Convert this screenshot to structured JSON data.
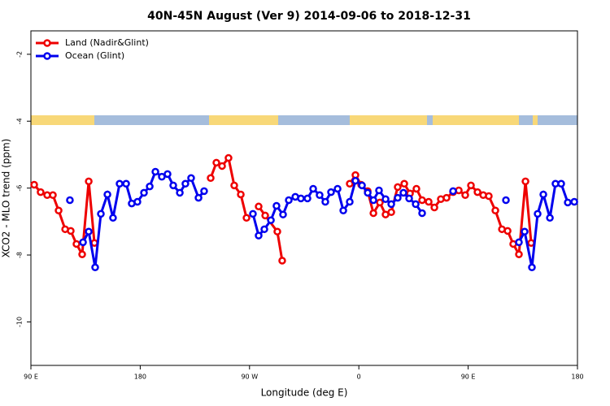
{
  "chart_data": {
    "type": "line",
    "title": "40N-45N August (Ver 9)   2014-09-06 to 2018-12-31",
    "xlabel": "Longitude (deg E)",
    "ylabel": "XCO2 - MLO trend (ppm)",
    "xlim": [
      90,
      540
    ],
    "ylim": [
      -11.3,
      -1.3
    ],
    "xticks": [
      {
        "value": 90,
        "label": "90 E"
      },
      {
        "value": 180,
        "label": "180"
      },
      {
        "value": 270,
        "label": "90 W"
      },
      {
        "value": 360,
        "label": "0"
      },
      {
        "value": 450,
        "label": "90 E"
      },
      {
        "value": 540,
        "label": "180"
      }
    ],
    "yticks": [
      -2,
      -4,
      -6,
      -8,
      -10
    ],
    "legend": "upper left",
    "series": [
      {
        "name": "Land (Nadir&Glint)",
        "color": "#ee0000",
        "x": [
          92.7,
          98.0,
          103.4,
          108.1,
          112.8,
          118.2,
          122.8,
          127.5,
          132.2,
          137.6,
          142.3,
          null,
          238.0,
          242.7,
          247.4,
          252.7,
          257.4,
          262.8,
          267.5,
          null,
          277.5,
          282.9,
          292.9,
          296.9,
          null,
          352.5,
          357.2,
          361.9,
          367.3,
          372.0,
          377.3,
          382.0,
          386.7,
          392.0,
          397.4,
          402.1,
          407.4,
          412.1,
          417.5,
          422.2,
          427.5,
          432.2,
          437.6,
          442.3,
          447.6,
          452.3,
          457.7,
          462.4,
          467.0,
          472.4,
          477.8,
          482.5,
          487.1,
          491.8,
          497.2,
          501.9
        ],
        "values": [
          -5.9,
          -6.12,
          -6.21,
          -6.21,
          -6.67,
          -7.23,
          -7.28,
          -7.67,
          -7.98,
          -5.8,
          -7.64,
          null,
          -5.7,
          -5.24,
          -5.34,
          -5.1,
          -5.92,
          -6.19,
          -6.89,
          null,
          -6.55,
          -6.82,
          -7.3,
          -8.17,
          null,
          -5.87,
          -5.61,
          -5.9,
          -6.09,
          -6.75,
          -6.43,
          -6.79,
          -6.72,
          -5.97,
          -5.87,
          -6.16,
          -6.02,
          -6.36,
          -6.41,
          -6.58,
          -6.33,
          -6.29,
          -6.12,
          -6.07,
          -6.21,
          -5.92,
          -6.12,
          -6.21,
          -6.24,
          -6.67,
          -7.23,
          -7.28,
          -7.67,
          -7.98,
          -5.8,
          -7.64
        ]
      },
      {
        "name": "Ocean (Glint)",
        "color": "#0000ee",
        "x": [
          122.1,
          null,
          132.9,
          137.6,
          142.9,
          147.6,
          153.0,
          157.6,
          163.0,
          168.4,
          173.0,
          177.7,
          183.1,
          187.8,
          192.5,
          197.8,
          202.5,
          207.2,
          212.6,
          217.2,
          221.9,
          228.0,
          232.6,
          null,
          272.8,
          277.5,
          282.2,
          287.6,
          292.2,
          297.6,
          302.3,
          307.7,
          312.3,
          317.7,
          322.4,
          327.7,
          332.4,
          337.1,
          342.5,
          347.2,
          352.5,
          357.2,
          362.6,
          367.3,
          372.0,
          376.6,
          382.0,
          386.7,
          392.0,
          396.7,
          401.4,
          406.8,
          412.1,
          null,
          437.6,
          null,
          481.1,
          null,
          491.8,
          496.5,
          502.5,
          507.2,
          511.9,
          517.3,
          521.9,
          526.6,
          532.0,
          537.4
        ],
        "values": [
          -6.36,
          null,
          -7.62,
          -7.3,
          -8.37,
          -6.77,
          -6.19,
          -6.89,
          -5.87,
          -5.87,
          -6.46,
          -6.41,
          -6.14,
          -5.95,
          -5.51,
          -5.66,
          -5.58,
          -5.92,
          -6.14,
          -5.87,
          -5.7,
          -6.29,
          -6.09,
          null,
          -6.77,
          -7.42,
          -7.23,
          -6.96,
          -6.53,
          -6.79,
          -6.36,
          -6.26,
          -6.31,
          -6.31,
          -6.02,
          -6.21,
          -6.41,
          -6.12,
          -6.02,
          -6.67,
          -6.41,
          -5.78,
          -5.92,
          -6.14,
          -6.36,
          -6.07,
          -6.33,
          -6.48,
          -6.29,
          -6.14,
          -6.31,
          -6.48,
          -6.75,
          null,
          -6.09,
          null,
          -6.36,
          null,
          -7.62,
          -7.3,
          -8.37,
          -6.77,
          -6.19,
          -6.89,
          -5.87,
          -5.87,
          -6.43,
          -6.41
        ]
      }
    ]
  }
}
